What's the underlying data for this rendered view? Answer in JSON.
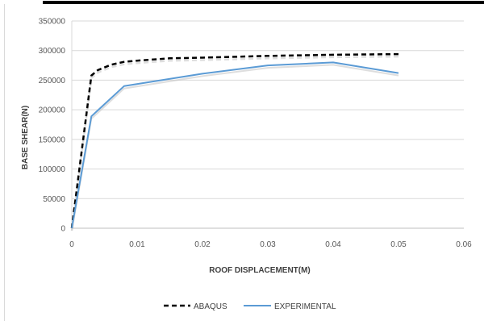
{
  "chart_data": {
    "type": "line",
    "title": "",
    "xlabel": "ROOF DISPLACEMENT(M)",
    "ylabel": "BASE SHEAR(N)",
    "xlim": [
      0,
      0.06
    ],
    "ylim": [
      0,
      350000
    ],
    "x_ticks": [
      0,
      0.01,
      0.02,
      0.03,
      0.04,
      0.05,
      0.06
    ],
    "x_tick_labels": [
      "0",
      "0.01",
      "0.02",
      "0.03",
      "0.04",
      "0.05",
      "0.06"
    ],
    "y_ticks": [
      0,
      50000,
      100000,
      150000,
      200000,
      250000,
      300000,
      350000
    ],
    "y_tick_labels": [
      "0",
      "50000",
      "100000",
      "150000",
      "200000",
      "250000",
      "300000",
      "350000"
    ],
    "grid": "horizontal",
    "legend_position": "bottom",
    "series": [
      {
        "name": "ABAQUS",
        "color": "#000000",
        "line_style": "dashed",
        "x": [
          0,
          0.003,
          0.004,
          0.006,
          0.008,
          0.01,
          0.015,
          0.02,
          0.03,
          0.04,
          0.05
        ],
        "y": [
          0,
          258000,
          267000,
          276000,
          281000,
          283000,
          287000,
          288000,
          291000,
          293000,
          294000
        ]
      },
      {
        "name": "EXPERIMENTAL",
        "color": "#5b9bd5",
        "line_style": "solid",
        "x": [
          0,
          0.003,
          0.008,
          0.02,
          0.03,
          0.04,
          0.05
        ],
        "y": [
          0,
          189000,
          240000,
          261000,
          275000,
          280000,
          262000
        ]
      }
    ]
  }
}
